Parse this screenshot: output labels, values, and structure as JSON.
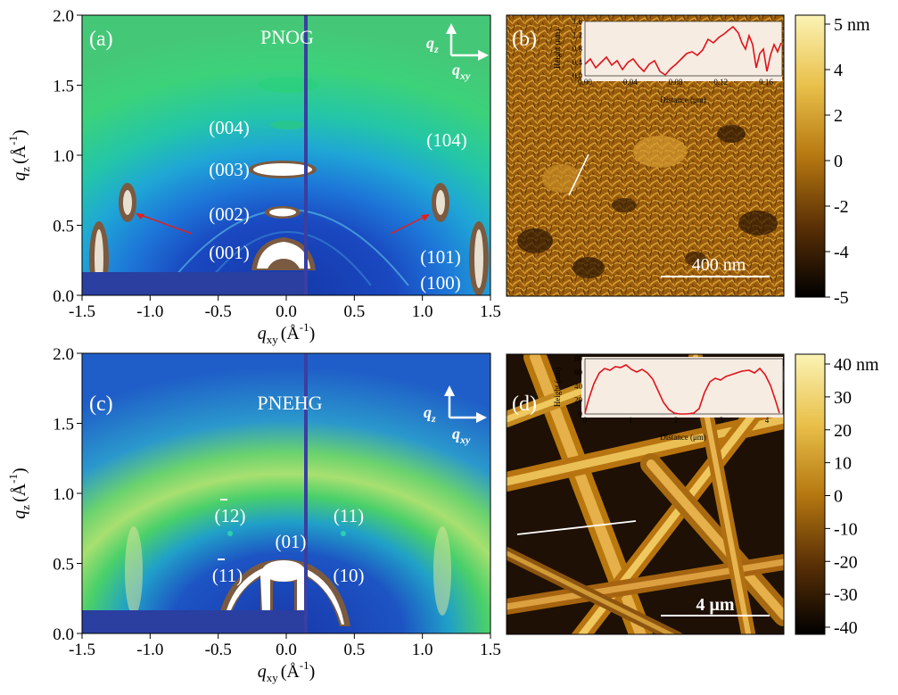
{
  "panels": {
    "a": {
      "letter": "(a)",
      "sample": "PNOG",
      "peaks": [
        "(004)",
        "(003)",
        "(002)",
        "(001)",
        "(104)",
        "(101)",
        "(100)"
      ]
    },
    "b": {
      "letter": "(b)",
      "scalebar": "400 nm",
      "inset": {
        "ylabel": "Height (nm)",
        "xlabel": "Distance (μm)",
        "yticks": [
          "0.0",
          "0.4",
          "0.8",
          "1.2",
          "1.6"
        ],
        "xticks": [
          "0.00",
          "0.04",
          "0.08",
          "0.12",
          "0.16"
        ]
      },
      "colorbar": {
        "ticks": [
          "5 nm",
          "4",
          "2",
          "0",
          "-2",
          "-4",
          "-5"
        ]
      }
    },
    "c": {
      "letter": "(c)",
      "sample": "PNEHG",
      "peaks": [
        "(12)",
        "(11)",
        "(01)",
        "(11)",
        "(10)"
      ]
    },
    "d": {
      "letter": "(d)",
      "scalebar": "4 μm",
      "inset": {
        "ylabel": "Height (nm)",
        "xlabel": "Distance (μm)",
        "yticks": [
          "0",
          "20",
          "40",
          "60",
          "80"
        ],
        "xticks": [
          "0",
          "1",
          "2",
          "3",
          "4"
        ]
      },
      "colorbar": {
        "ticks": [
          "40 nm",
          "30",
          "20",
          "10",
          "0",
          "-10",
          "-20",
          "-30",
          "-40"
        ]
      }
    }
  },
  "axes": {
    "x_ticks": [
      "-1.5",
      "-1.0",
      "-0.5",
      "0.0",
      "0.5",
      "1.0",
      "1.5"
    ],
    "y_ticks": [
      "0.0",
      "0.5",
      "1.0",
      "1.5",
      "2.0"
    ],
    "x_label": "q",
    "x_label_sub": "xy",
    "y_label": "q",
    "y_label_sub": "z",
    "unit": "(Å",
    "unit_sup": "-1",
    "unit_close": ")",
    "arrow_qz": "q",
    "arrow_qz_sub": "z",
    "arrow_qxy": "q",
    "arrow_qxy_sub": "xy"
  },
  "colors": {
    "giwaxs_bg": "#1f4fbf",
    "giwaxs_ring": "#2fc88a",
    "afm_dark": "#1a0e02",
    "afm_mid": "#a8660c",
    "afm_light": "#f4e7a0",
    "profile_line": "#e0121a"
  }
}
